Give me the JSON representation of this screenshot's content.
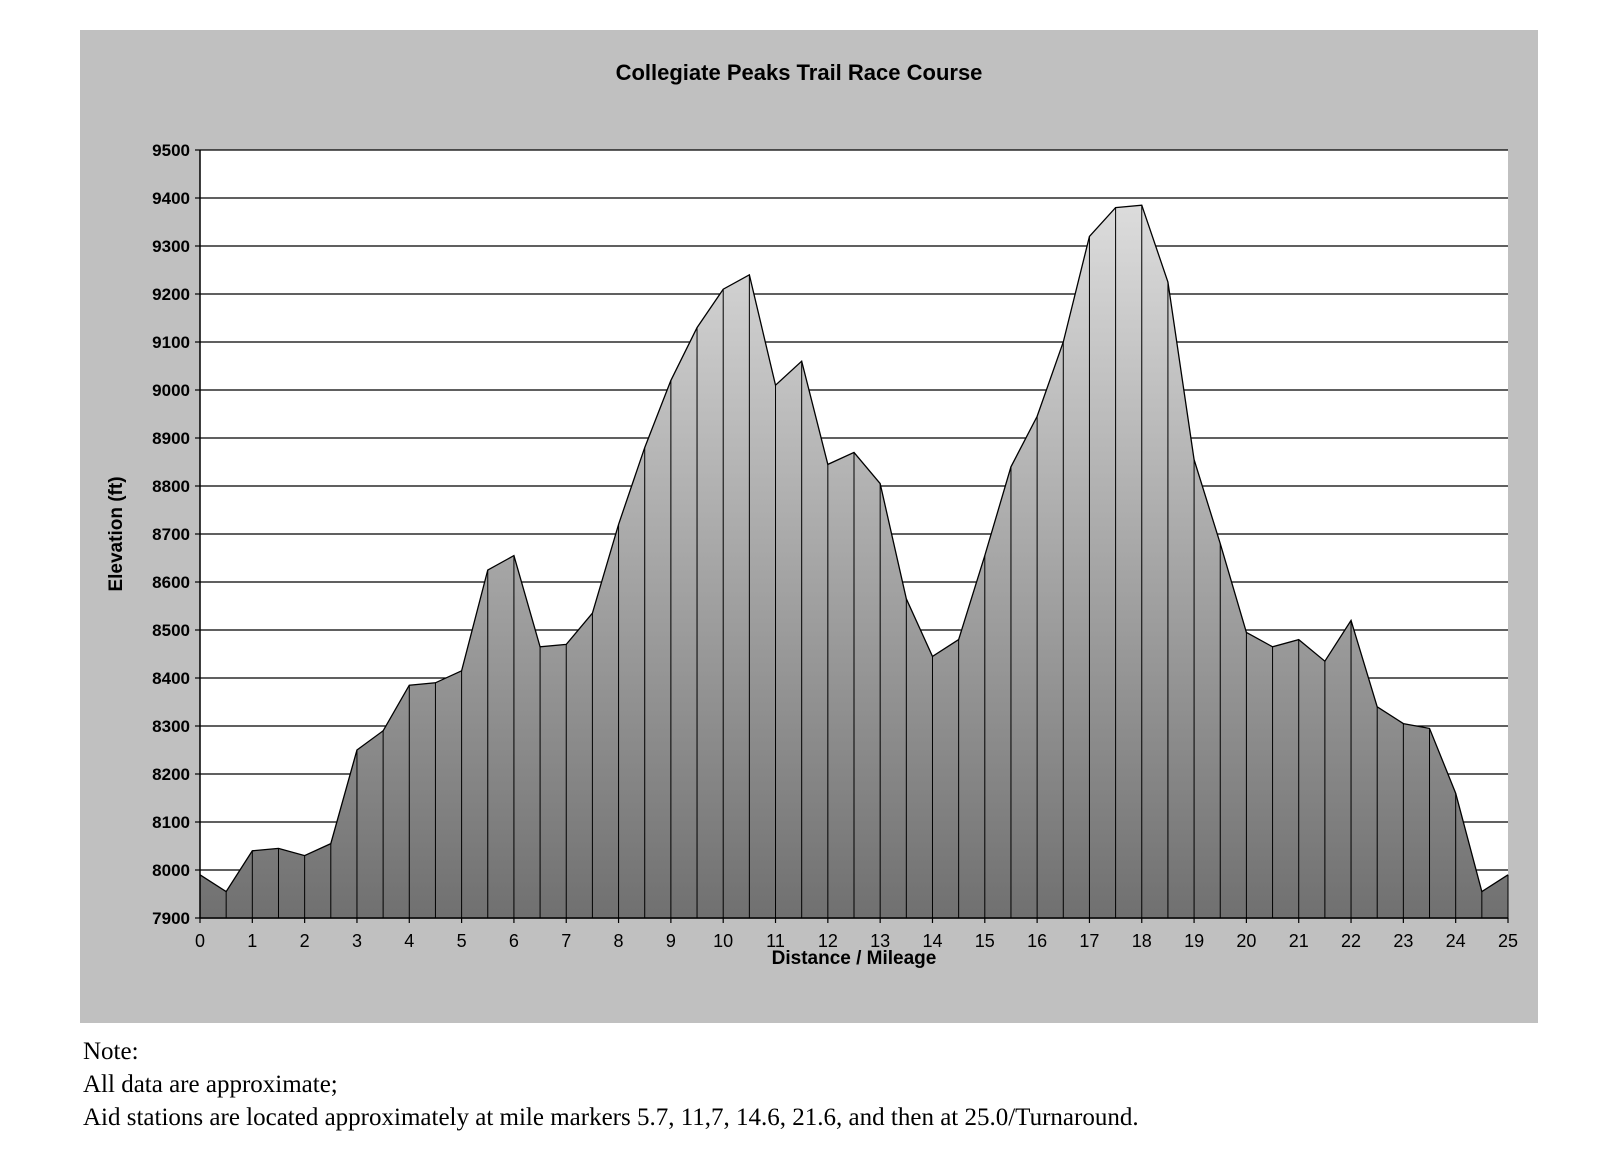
{
  "chart_data": {
    "type": "area",
    "title": "Collegiate Peaks Trail Race Course",
    "xlabel": "Distance / Mileage",
    "ylabel": "Elevation (ft)",
    "xlim": [
      0,
      25
    ],
    "ylim": [
      7900,
      9500
    ],
    "x_ticks": [
      "0",
      "1",
      "2",
      "3",
      "4",
      "5",
      "6",
      "7",
      "8",
      "9",
      "10",
      "11",
      "12",
      "13",
      "14",
      "15",
      "16",
      "17",
      "18",
      "19",
      "20",
      "21",
      "22",
      "23",
      "24",
      "25"
    ],
    "y_ticks": [
      "7900",
      "8000",
      "8100",
      "8200",
      "8300",
      "8400",
      "8500",
      "8600",
      "8700",
      "8800",
      "8900",
      "9000",
      "9100",
      "9200",
      "9300",
      "9400",
      "9500"
    ],
    "grid": "horizontal",
    "series": [
      {
        "x": [
          0,
          0.5,
          1,
          1.5,
          2,
          2.5,
          3,
          3.5,
          4,
          4.5,
          5,
          5.5,
          6,
          6.5,
          7,
          7.5,
          8,
          8.5,
          9,
          9.5,
          10,
          10.5,
          11,
          11.5,
          12,
          12.5,
          13,
          13.5,
          14,
          14.5,
          15,
          15.5,
          16,
          16.5,
          17,
          17.5,
          18,
          18.5,
          19,
          19.5,
          20,
          20.5,
          21,
          21.5,
          22,
          22.5,
          23,
          23.5,
          24,
          24.5,
          25
        ],
        "values": [
          7990,
          7955,
          8040,
          8045,
          8030,
          8055,
          8250,
          8290,
          8385,
          8390,
          8415,
          8625,
          8655,
          8465,
          8470,
          8535,
          8720,
          8880,
          9020,
          9130,
          9210,
          9240,
          9010,
          9060,
          8845,
          8870,
          8805,
          8565,
          8445,
          8480,
          8655,
          8840,
          8945,
          9100,
          9320,
          9380,
          9385,
          9225,
          8855,
          8680,
          8495,
          8465,
          8480,
          8435,
          8520,
          8340,
          8305,
          8295,
          8160,
          7955,
          7990
        ]
      }
    ],
    "colors": {
      "panel_background": "#c0c0c0",
      "plot_background": "#ffffff",
      "area_fill_top": "#dcdcdc",
      "area_fill_bottom": "#707070",
      "outline": "#000000"
    }
  },
  "notes": {
    "heading": "Note:",
    "line1": "All data are approximate;",
    "line2": "Aid stations are located approximately at mile markers 5.7, 11,7, 14.6, 21.6, and then at 25.0/Turnaround."
  }
}
